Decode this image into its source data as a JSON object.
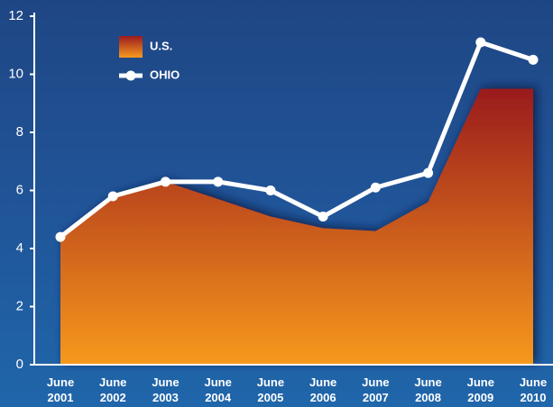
{
  "chart_data": {
    "type": "area-line",
    "categories": [
      "June 2001",
      "June 2002",
      "June 2003",
      "June 2004",
      "June 2005",
      "June 2006",
      "June 2007",
      "June 2008",
      "June 2009",
      "June 2010"
    ],
    "series": [
      {
        "name": "U.S.",
        "type": "area",
        "color": "#c8522a",
        "gradient": [
          "#9a1b1f",
          "#f7991f"
        ],
        "values": [
          4.4,
          5.8,
          6.3,
          5.7,
          5.1,
          4.7,
          4.6,
          5.6,
          9.5,
          9.5
        ]
      },
      {
        "name": "OHIO",
        "type": "line",
        "color": "#ffffff",
        "values": [
          4.4,
          5.8,
          6.3,
          6.3,
          6.0,
          5.1,
          6.1,
          6.6,
          11.1,
          10.5
        ]
      }
    ],
    "ylim": [
      0,
      12
    ],
    "yticks": [
      0,
      2,
      4,
      6,
      8,
      10,
      12
    ],
    "grid": false
  }
}
